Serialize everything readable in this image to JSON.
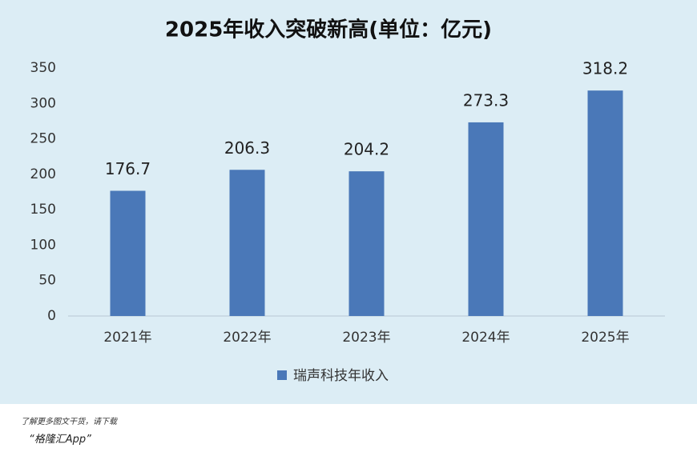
{
  "chart_data": {
    "type": "bar",
    "title": "2025年收入突破新高(单位：亿元)",
    "categories": [
      "2021年",
      "2022年",
      "2023年",
      "2024年",
      "2025年"
    ],
    "series": [
      {
        "name": "瑞声科技年收入",
        "color": "#4a78b8",
        "values": [
          176.7,
          206.3,
          204.2,
          273.3,
          318.2
        ]
      }
    ],
    "ylim": [
      0,
      350
    ],
    "yticks": [
      0,
      50,
      100,
      150,
      200,
      250,
      300,
      350
    ],
    "grid": false,
    "legend": "bottom"
  },
  "footer": {
    "note": "了解更多图文干货，请下载",
    "app": "“格隆汇App”"
  }
}
